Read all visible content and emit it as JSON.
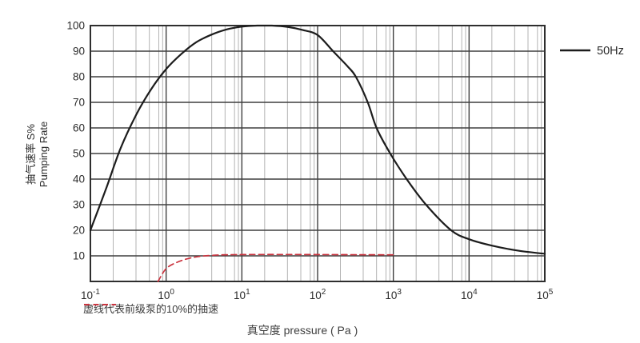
{
  "chart_data": {
    "type": "line",
    "title": "",
    "xlabel": "真空度 pressure ( Pa )",
    "ylabel_lines": [
      "抽气速率 S%",
      "Pumping Rate"
    ],
    "x_axis": {
      "scale": "log",
      "unit": "Pa",
      "min_exp": -1,
      "max_exp": 5,
      "tick_exponents": [
        -1,
        0,
        1,
        2,
        3,
        4,
        5
      ],
      "minor_multiples": [
        2,
        4,
        6,
        8,
        9
      ],
      "grid": "on"
    },
    "y_axis": {
      "min": 0,
      "max": 100,
      "tick_step": 10,
      "tick_values": [
        10,
        20,
        30,
        40,
        50,
        60,
        70,
        80,
        90,
        100
      ],
      "grid": "on"
    },
    "series": [
      {
        "name": "50Hz",
        "color": "#1c1c1c",
        "style": "solid",
        "stroke_width": 2.2,
        "points_pa_percent": [
          [
            0.1,
            20
          ],
          [
            0.16,
            36
          ],
          [
            0.25,
            52
          ],
          [
            0.4,
            65
          ],
          [
            0.63,
            75
          ],
          [
            1,
            83
          ],
          [
            1.6,
            89
          ],
          [
            2.5,
            93.5
          ],
          [
            4,
            96.5
          ],
          [
            6.3,
            98.5
          ],
          [
            10,
            99.6
          ],
          [
            16,
            100
          ],
          [
            25,
            100
          ],
          [
            40,
            99.5
          ],
          [
            63,
            98.3
          ],
          [
            100,
            96.3
          ],
          [
            160,
            90
          ],
          [
            250,
            84
          ],
          [
            320,
            80
          ],
          [
            460,
            70
          ],
          [
            600,
            60
          ],
          [
            910,
            50
          ],
          [
            1500,
            40
          ],
          [
            2700,
            30
          ],
          [
            5800,
            20
          ],
          [
            10000,
            16.5
          ],
          [
            20000,
            14
          ],
          [
            45000,
            12
          ],
          [
            100000,
            10.8
          ]
        ]
      },
      {
        "name": "前级泵的10%的抽速",
        "color": "#cb3540",
        "style": "dashed",
        "stroke_width": 1.7,
        "points_pa_percent": [
          [
            0.78,
            0
          ],
          [
            1,
            5
          ],
          [
            1.4,
            7.5
          ],
          [
            2.2,
            9.3
          ],
          [
            4,
            10.2
          ],
          [
            10,
            10.5
          ],
          [
            100,
            10.5
          ],
          [
            1000,
            10.4
          ]
        ]
      }
    ],
    "legend": [
      {
        "label": "50Hz",
        "color": "#1c1c1c"
      }
    ],
    "annotation": {
      "text": "虚线代表前级泵的10%的抽速",
      "dash_color": "#cb3540"
    },
    "colors": {
      "major_grid": "#3f3f3f",
      "minor_grid": "#b3b3b3",
      "border": "#2e2e2e",
      "background": "#ffffff"
    },
    "layout": {
      "plot_left": 113,
      "plot_right": 681,
      "plot_top": 32,
      "plot_bottom": 352
    }
  }
}
